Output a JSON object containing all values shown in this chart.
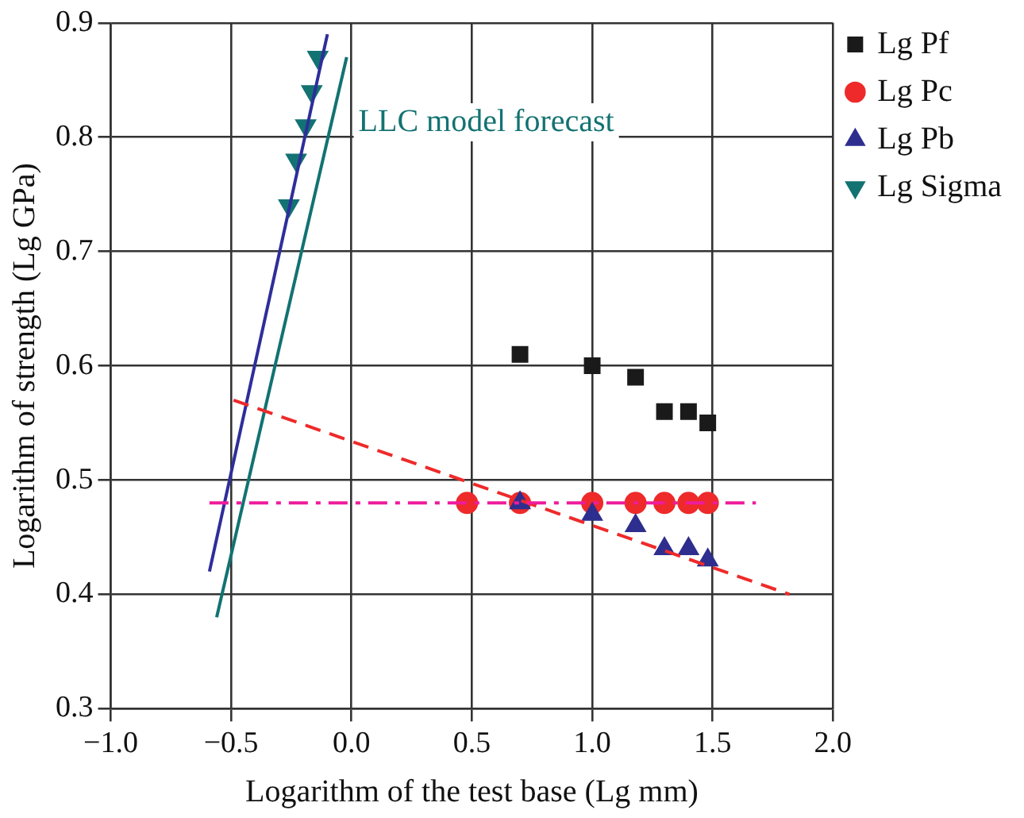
{
  "chart_data": {
    "type": "scatter",
    "xlabel": "Logarithm of the test base (Lg mm)",
    "ylabel": "Logarithm of strength (Lg GPa)",
    "xlim": [
      -1.0,
      2.0
    ],
    "xticks": [
      {
        "value": -1,
        "label": "−1.0"
      },
      {
        "value": -0.5,
        "label": "−0.5"
      },
      {
        "value": 0,
        "label": "0.0"
      },
      {
        "value": 0.5,
        "label": "0.5"
      },
      {
        "value": 1,
        "label": "1.0"
      },
      {
        "value": 1.5,
        "label": "1.5"
      },
      {
        "value": 2,
        "label": "2.0"
      }
    ],
    "ylim": [
      0.3,
      0.9
    ],
    "yticks": [
      0.3,
      0.4,
      0.5,
      0.6,
      0.7,
      0.8,
      0.9
    ],
    "grid": true,
    "legend": "top right",
    "annotations": [
      "LLC model forecast"
    ],
    "series": [
      {
        "name": "Lg Pf",
        "type": "scatter",
        "marker": "square",
        "color": "#1a1a1a",
        "x": [
          0.7,
          1.0,
          1.18,
          1.3,
          1.4,
          1.48
        ],
        "values": [
          0.61,
          0.6,
          0.59,
          0.56,
          0.56,
          0.55
        ]
      },
      {
        "name": "Lg Pc",
        "type": "scatter",
        "marker": "circle",
        "color": "#ee2a2a",
        "x": [
          0.48,
          0.7,
          1.0,
          1.18,
          1.3,
          1.4,
          1.48
        ],
        "values": [
          0.48,
          0.48,
          0.48,
          0.48,
          0.48,
          0.48,
          0.48
        ]
      },
      {
        "name": "Lg Pb",
        "type": "scatter",
        "marker": "triangle",
        "color": "#2e2e8f",
        "x": [
          0.7,
          1.0,
          1.18,
          1.3,
          1.4,
          1.48
        ],
        "values": [
          0.48,
          0.47,
          0.46,
          0.44,
          0.44,
          0.43
        ]
      },
      {
        "name": "Lg Sigma",
        "type": "scatter",
        "marker": "triangle-down",
        "color": "#137272",
        "x": [
          -0.26,
          -0.23,
          -0.19,
          -0.165,
          -0.14
        ],
        "values": [
          0.74,
          0.78,
          0.81,
          0.84,
          0.87
        ]
      },
      {
        "type": "line",
        "marker": "none",
        "line_style": "solid",
        "color": "#2e2e9a",
        "x": [
          -0.59,
          -0.1
        ],
        "values": [
          0.42,
          0.89
        ]
      },
      {
        "type": "line",
        "marker": "none",
        "line_style": "solid",
        "color": "#137272",
        "x": [
          -0.56,
          -0.02
        ],
        "values": [
          0.38,
          0.87
        ]
      },
      {
        "type": "line",
        "marker": "none",
        "line_style": "dashed",
        "color": "#ee2a2a",
        "x": [
          -0.49,
          1.82
        ],
        "values": [
          0.57,
          0.4
        ]
      },
      {
        "type": "line",
        "marker": "none",
        "line_style": "dashdot",
        "color": "#ee1c9c",
        "x": [
          -0.59,
          1.68
        ],
        "values": [
          0.48,
          0.48
        ]
      }
    ]
  }
}
